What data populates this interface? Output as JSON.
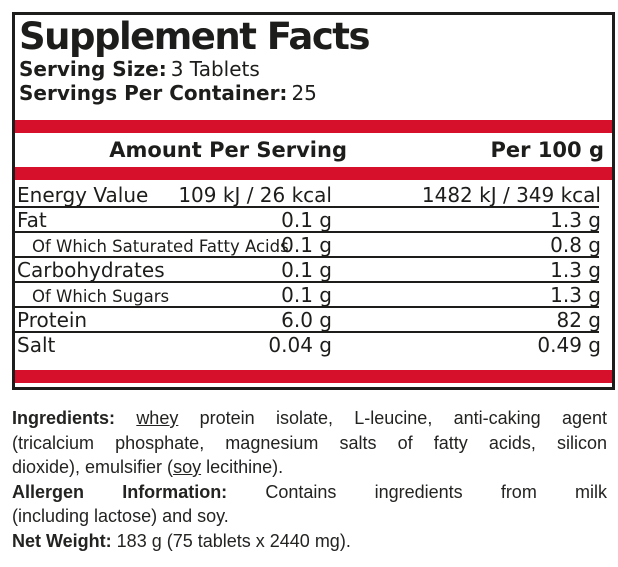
{
  "colors": {
    "accent_red": "#d60f2b",
    "ink_black": "#1d1d1b"
  },
  "panel": {
    "title": "Supplement Facts",
    "serving_size_label": "Serving Size:",
    "serving_size_value": "3 Tablets",
    "servings_per_container_label": "Servings Per Container:",
    "servings_per_container_value": "25",
    "header": {
      "amount_column": "Amount Per Serving",
      "per100_column": "Per 100 g"
    },
    "rows": [
      {
        "label": "Energy Value",
        "amount": "109 kJ / 26 kcal",
        "per100": "1482 kJ / 349 kcal",
        "sub": false
      },
      {
        "label": "Fat",
        "amount": "0.1 g",
        "per100": "1.3 g",
        "sub": false
      },
      {
        "label": "Of Which Saturated Fatty Acids",
        "amount": "0.1 g",
        "per100": "0.8 g",
        "sub": true
      },
      {
        "label": "Carbohydrates",
        "amount": "0.1 g",
        "per100": "1.3 g",
        "sub": false
      },
      {
        "label": "Of Which Sugars",
        "amount": "0.1 g",
        "per100": "1.3 g",
        "sub": true
      },
      {
        "label": "Protein",
        "amount": "6.0 g",
        "per100": "82 g",
        "sub": false
      },
      {
        "label": "Salt",
        "amount": "0.04 g",
        "per100": "0.49 g",
        "sub": false
      }
    ]
  },
  "info": {
    "paragraphs": [
      {
        "name": "ingredients",
        "lines": [
          {
            "justify": true,
            "segments": [
              {
                "t": "Ingredients:",
                "b": true
              },
              {
                "t": " "
              },
              {
                "t": "whey",
                "u": true
              },
              {
                "t": " protein isolate, L-leucine, anti-caking agent"
              }
            ]
          },
          {
            "justify": true,
            "segments": [
              {
                "t": "(tricalcium phosphate, magnesium salts of fatty acids, silicon"
              }
            ]
          },
          {
            "justify": false,
            "segments": [
              {
                "t": "dioxide), emulsifier ("
              },
              {
                "t": "soy",
                "u": true
              },
              {
                "t": " lecithine)."
              }
            ]
          }
        ]
      },
      {
        "name": "allergen-information",
        "lines": [
          {
            "justify": true,
            "segments": [
              {
                "t": "Allergen Information:",
                "b": true
              },
              {
                "t": " Contains ingredients from milk"
              }
            ]
          },
          {
            "justify": false,
            "segments": [
              {
                "t": "(including lactose) and soy."
              }
            ]
          }
        ]
      },
      {
        "name": "net-weight",
        "lines": [
          {
            "justify": false,
            "segments": [
              {
                "t": "Net Weight:",
                "b": true
              },
              {
                "t": " 183 g (75 tablets x 2440 mg)."
              }
            ]
          }
        ]
      }
    ]
  }
}
